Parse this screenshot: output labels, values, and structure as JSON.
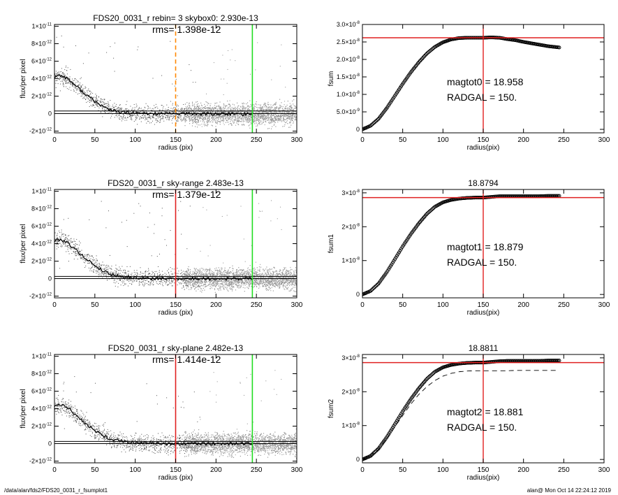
{
  "footer": {
    "path": "/data/alan/fds2/FDS20_0031_r_fsumplot1",
    "user_time": "alan@  Mon Oct 14 22:24:12 2019"
  },
  "colors": {
    "orange": "#ff8800",
    "red": "#e02020",
    "green": "#22dd22",
    "black": "#000000",
    "grey": "#999999"
  },
  "chart_data": [
    {
      "type": "scatter",
      "title": "FDS20_0031_r rebin= 3    skybox0:  2.930e-13",
      "annotation": "rms= 1.398e-12",
      "xlabel": "radius (pix)",
      "ylabel": "flux/per pixel",
      "xlim": [
        0,
        300
      ],
      "ylim": [
        -2.2e-12,
        1.02e-11
      ],
      "xticks": [
        "0",
        "50",
        "100",
        "150",
        "200",
        "250",
        "300"
      ],
      "yticks": [
        {
          "v": -2e-12,
          "m": "-2",
          "e": "-12"
        },
        {
          "v": 0,
          "m": "0",
          "e": ""
        },
        {
          "v": 2e-12,
          "m": "2",
          "e": "-12"
        },
        {
          "v": 4e-12,
          "m": "4",
          "e": "-12"
        },
        {
          "v": 6e-12,
          "m": "6",
          "e": "-12"
        },
        {
          "v": 8e-12,
          "m": "8",
          "e": "-12"
        },
        {
          "v": 1e-11,
          "m": "1",
          "e": "-11",
          "pre": "×10"
        }
      ],
      "profile": {
        "x": [
          0,
          5,
          10,
          15,
          20,
          30,
          40,
          50,
          60,
          70,
          80,
          90,
          100,
          110,
          120,
          150,
          200,
          245
        ],
        "y": [
          4.2e-12,
          4.4e-12,
          4.3e-12,
          4.1e-12,
          3.7e-12,
          2.9e-12,
          2.1e-12,
          1.4e-12,
          8e-13,
          4e-13,
          2e-13,
          1e-13,
          5e-14,
          2e-14,
          0,
          0,
          -3e-14,
          -5e-14
        ]
      },
      "sky_lines": [
        3e-13,
        0
      ],
      "vlines": [
        {
          "x": 150,
          "color": "orange",
          "dash": true
        },
        {
          "x": 245,
          "color": "green"
        }
      ]
    },
    {
      "type": "line",
      "title": "",
      "xlabel": "radius(pix)",
      "ylabel": "fsum",
      "xlim": [
        0,
        300
      ],
      "ylim": [
        -1e-09,
        3e-08
      ],
      "xticks": [
        "0",
        "50",
        "100",
        "150",
        "200",
        "250",
        "300"
      ],
      "yticks": [
        {
          "v": 0,
          "m": "0",
          "e": ""
        },
        {
          "v": 5e-09,
          "m": "5.0",
          "e": "-9"
        },
        {
          "v": 1e-08,
          "m": "1.0",
          "e": "-8"
        },
        {
          "v": 1.5e-08,
          "m": "1.5",
          "e": "-8"
        },
        {
          "v": 2e-08,
          "m": "2.0",
          "e": "-8"
        },
        {
          "v": 2.5e-08,
          "m": "2.5",
          "e": "-8"
        },
        {
          "v": 3e-08,
          "m": "3.0",
          "e": "-8"
        }
      ],
      "series": [
        {
          "x": [
            0,
            10,
            20,
            30,
            40,
            50,
            60,
            70,
            80,
            90,
            100,
            110,
            120,
            130,
            140,
            150,
            160,
            170,
            180,
            190,
            200,
            210,
            220,
            230,
            245
          ],
          "y": [
            0,
            1e-09,
            3e-09,
            6e-09,
            9.5e-09,
            1.3e-08,
            1.63e-08,
            1.92e-08,
            2.17e-08,
            2.36e-08,
            2.49e-08,
            2.57e-08,
            2.61e-08,
            2.62e-08,
            2.62e-08,
            2.62e-08,
            2.63e-08,
            2.62e-08,
            2.58e-08,
            2.55e-08,
            2.5e-08,
            2.46e-08,
            2.42e-08,
            2.38e-08,
            2.34e-08
          ],
          "style": "circles"
        }
      ],
      "hline": 2.62e-08,
      "vline": 150,
      "annotations": [
        "magtot0 =  18.958",
        "RADGAL =    150."
      ]
    },
    {
      "type": "scatter",
      "title": "FDS20_0031_r sky-range  2.483e-13",
      "annotation": "rms= 1.379e-12",
      "xlabel": "radius (pix)",
      "ylabel": "flux/per pixel",
      "xlim": [
        0,
        300
      ],
      "ylim": [
        -2.2e-12,
        1.02e-11
      ],
      "xticks": [
        "0",
        "50",
        "100",
        "150",
        "200",
        "250",
        "300"
      ],
      "yticks": [
        {
          "v": -2e-12,
          "m": "-2",
          "e": "-12"
        },
        {
          "v": 0,
          "m": "0",
          "e": ""
        },
        {
          "v": 2e-12,
          "m": "2",
          "e": "-12"
        },
        {
          "v": 4e-12,
          "m": "4",
          "e": "-12"
        },
        {
          "v": 6e-12,
          "m": "6",
          "e": "-12"
        },
        {
          "v": 8e-12,
          "m": "8",
          "e": "-12"
        },
        {
          "v": 1e-11,
          "m": "1",
          "e": "-11",
          "pre": "×10"
        }
      ],
      "profile": {
        "x": [
          0,
          5,
          10,
          15,
          20,
          30,
          40,
          50,
          60,
          70,
          80,
          90,
          100,
          110,
          120,
          150,
          200,
          245
        ],
        "y": [
          4.3e-12,
          4.5e-12,
          4.4e-12,
          4.2e-12,
          3.8e-12,
          3e-12,
          2.2e-12,
          1.5e-12,
          9e-13,
          5e-13,
          3e-13,
          2e-13,
          1e-13,
          5e-14,
          2e-14,
          0,
          0,
          0
        ]
      },
      "sky_lines": [
        2.5e-13,
        0
      ],
      "vlines": [
        {
          "x": 150,
          "color": "red"
        },
        {
          "x": 245,
          "color": "green"
        }
      ]
    },
    {
      "type": "line",
      "title": "18.8794",
      "xlabel": "radius(pix)",
      "ylabel": "fsum1",
      "xlim": [
        0,
        300
      ],
      "ylim": [
        -1e-09,
        3.1e-08
      ],
      "xticks": [
        "0",
        "50",
        "100",
        "150",
        "200",
        "250",
        "300"
      ],
      "yticks": [
        {
          "v": 0,
          "m": "0",
          "e": ""
        },
        {
          "v": 1e-08,
          "m": "1",
          "e": "-8",
          "pre": "×10"
        },
        {
          "v": 2e-08,
          "m": "2",
          "e": "-8",
          "pre": "×10"
        },
        {
          "v": 3e-08,
          "m": "3",
          "e": "-8",
          "pre": "×10"
        }
      ],
      "series": [
        {
          "x": [
            0,
            10,
            20,
            30,
            40,
            50,
            60,
            70,
            80,
            90,
            100,
            110,
            120,
            130,
            140,
            150,
            160,
            170,
            180,
            190,
            200,
            210,
            220,
            230,
            245
          ],
          "y": [
            0,
            1e-09,
            3.2e-09,
            6.5e-09,
            1.03e-08,
            1.42e-08,
            1.78e-08,
            2.1e-08,
            2.38e-08,
            2.59e-08,
            2.72e-08,
            2.79e-08,
            2.83e-08,
            2.85e-08,
            2.86e-08,
            2.86e-08,
            2.88e-08,
            2.9e-08,
            2.9e-08,
            2.9e-08,
            2.9e-08,
            2.9e-08,
            2.9e-08,
            2.91e-08,
            2.91e-08
          ],
          "style": "circles"
        }
      ],
      "hline": 2.86e-08,
      "vline": 150,
      "annotations": [
        "magtot1 =  18.879",
        "RADGAL =    150."
      ]
    },
    {
      "type": "scatter",
      "title": "FDS20_0031_r sky-plane  2.482e-13",
      "annotation": "rms= 1.414e-12",
      "xlabel": "radius (pix)",
      "ylabel": "flux/per pixel",
      "xlim": [
        0,
        300
      ],
      "ylim": [
        -2.2e-12,
        1.02e-11
      ],
      "xticks": [
        "0",
        "50",
        "100",
        "150",
        "200",
        "250",
        "300"
      ],
      "yticks": [
        {
          "v": -2e-12,
          "m": "-2",
          "e": "-12"
        },
        {
          "v": 0,
          "m": "0",
          "e": ""
        },
        {
          "v": 2e-12,
          "m": "2",
          "e": "-12"
        },
        {
          "v": 4e-12,
          "m": "4",
          "e": "-12"
        },
        {
          "v": 6e-12,
          "m": "6",
          "e": "-12"
        },
        {
          "v": 8e-12,
          "m": "8",
          "e": "-12"
        },
        {
          "v": 1e-11,
          "m": "1",
          "e": "-11",
          "pre": "×10"
        }
      ],
      "profile": {
        "x": [
          0,
          5,
          10,
          15,
          20,
          30,
          40,
          50,
          60,
          70,
          80,
          90,
          100,
          110,
          120,
          150,
          200,
          245
        ],
        "y": [
          4.3e-12,
          4.5e-12,
          4.4e-12,
          4.2e-12,
          3.8e-12,
          3e-12,
          2.2e-12,
          1.5e-12,
          9e-13,
          5e-13,
          3e-13,
          2e-13,
          1e-13,
          5e-14,
          2e-14,
          0,
          0,
          0
        ]
      },
      "sky_lines": [
        2.5e-13,
        0
      ],
      "vlines": [
        {
          "x": 150,
          "color": "red"
        },
        {
          "x": 245,
          "color": "green"
        }
      ]
    },
    {
      "type": "line",
      "title": "18.8811",
      "xlabel": "radius(pix)",
      "ylabel": "fsum2",
      "xlim": [
        0,
        300
      ],
      "ylim": [
        -1e-09,
        3.1e-08
      ],
      "xticks": [
        "0",
        "50",
        "100",
        "150",
        "200",
        "250",
        "300"
      ],
      "yticks": [
        {
          "v": 0,
          "m": "0",
          "e": ""
        },
        {
          "v": 1e-08,
          "m": "1",
          "e": "-8",
          "pre": "×10"
        },
        {
          "v": 2e-08,
          "m": "2",
          "e": "-8",
          "pre": "×10"
        },
        {
          "v": 3e-08,
          "m": "3",
          "e": "-8",
          "pre": "×10"
        }
      ],
      "series": [
        {
          "x": [
            0,
            10,
            20,
            30,
            40,
            50,
            60,
            70,
            80,
            90,
            100,
            110,
            120,
            130,
            140,
            150,
            160,
            170,
            180,
            190,
            200,
            210,
            220,
            230,
            245
          ],
          "y": [
            0,
            1e-09,
            3.2e-09,
            6.5e-09,
            1.03e-08,
            1.42e-08,
            1.78e-08,
            2.1e-08,
            2.38e-08,
            2.59e-08,
            2.72e-08,
            2.79e-08,
            2.83e-08,
            2.85e-08,
            2.86e-08,
            2.86e-08,
            2.88e-08,
            2.9e-08,
            2.91e-08,
            2.91e-08,
            2.91e-08,
            2.91e-08,
            2.91e-08,
            2.92e-08,
            2.92e-08
          ],
          "style": "circles"
        },
        {
          "x": [
            0,
            10,
            20,
            30,
            40,
            50,
            60,
            70,
            80,
            90,
            100,
            110,
            120,
            130,
            140,
            150,
            160,
            170,
            180,
            190,
            200,
            210,
            220,
            230,
            245
          ],
          "y": [
            0,
            1e-09,
            3e-09,
            6e-09,
            9.5e-09,
            1.3e-08,
            1.63e-08,
            1.92e-08,
            2.15e-08,
            2.33e-08,
            2.46e-08,
            2.54e-08,
            2.59e-08,
            2.61e-08,
            2.62e-08,
            2.62e-08,
            2.62e-08,
            2.62e-08,
            2.62e-08,
            2.63e-08,
            2.63e-08,
            2.63e-08,
            2.63e-08,
            2.63e-08,
            2.63e-08
          ],
          "style": "dashed"
        }
      ],
      "hline": 2.86e-08,
      "vline": 150,
      "annotations": [
        "magtot2 =  18.881",
        "RADGAL =    150."
      ]
    }
  ]
}
